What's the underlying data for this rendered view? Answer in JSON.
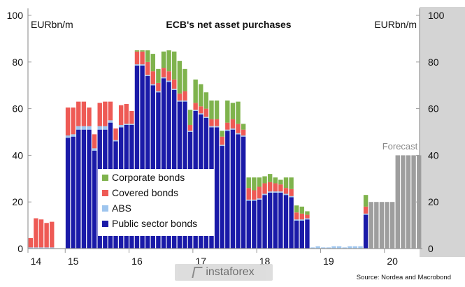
{
  "chart_data": {
    "type": "bar",
    "stacked": true,
    "title": "ECB's net asset purchases",
    "unit_left": "EURbn/m",
    "unit_right": "EURbn/m",
    "source": "Source: Nordea and Macrobond",
    "forecast_label": "Forecast",
    "ylim": [
      0,
      100
    ],
    "yticks": [
      0,
      20,
      40,
      60,
      80,
      100
    ],
    "xtick_labels": [
      {
        "label": "14",
        "month": 1
      },
      {
        "label": "15",
        "month": 8
      },
      {
        "label": "16",
        "month": 20
      },
      {
        "label": "17",
        "month": 32
      },
      {
        "label": "18",
        "month": 44
      },
      {
        "label": "19",
        "month": 56
      },
      {
        "label": "20",
        "month": 68
      }
    ],
    "month_count": 74,
    "colors": {
      "public": "#1a1aa8",
      "abs": "#9ec5ee",
      "covered": "#ee5a55",
      "corporate": "#7fb34d",
      "forecast": "#9e9e9e",
      "axis": "#999999",
      "right_band": "#d4d4d4"
    },
    "series": [
      {
        "name": "Public sector bonds",
        "key": "public",
        "values": [
          0,
          0,
          0,
          0,
          0,
          0,
          0,
          47.5,
          48,
          51,
          51,
          51,
          42,
          51,
          51,
          54,
          46,
          52,
          53,
          53,
          78.5,
          78.5,
          74,
          70,
          67,
          73,
          71.5,
          68,
          63,
          63,
          50,
          59,
          57.5,
          56,
          52,
          52,
          44,
          50.5,
          51,
          49,
          48,
          20.5,
          20.5,
          21,
          23,
          24,
          24,
          24,
          23,
          22,
          12,
          12,
          12.5,
          0,
          0,
          0,
          0,
          0,
          0,
          0,
          0,
          0,
          0,
          14.5,
          0,
          0,
          0,
          0,
          0,
          0,
          0,
          0,
          0,
          0
        ]
      },
      {
        "name": "ABS",
        "key": "abs",
        "values": [
          0.5,
          0.5,
          0.5,
          0.5,
          0.5,
          0,
          0,
          1,
          1,
          1.5,
          1.5,
          1.5,
          1,
          1.5,
          1.5,
          1,
          0.5,
          1,
          0.5,
          0.5,
          0.5,
          0.5,
          0.5,
          0.5,
          0.5,
          0.5,
          0.5,
          0.5,
          0.5,
          0.5,
          0.5,
          0.5,
          0.5,
          0.5,
          0.5,
          0.5,
          0.5,
          0.5,
          0.5,
          0.5,
          0.5,
          0.5,
          0.5,
          0.5,
          0.5,
          0.5,
          0.5,
          0.5,
          0.5,
          0.5,
          0.5,
          0.5,
          0.5,
          0.5,
          1,
          0.5,
          0.5,
          1,
          1,
          0.5,
          1,
          1,
          1,
          0.5,
          0,
          0,
          0,
          0,
          0,
          0,
          0,
          0,
          0,
          0
        ]
      },
      {
        "name": "Covered bonds",
        "key": "covered",
        "values": [
          4,
          12.5,
          12,
          10.5,
          11,
          0,
          0,
          12,
          11.5,
          10.5,
          10.5,
          8,
          6,
          10,
          10.5,
          8,
          5,
          8.5,
          8.5,
          5.5,
          5.5,
          5.5,
          5.5,
          5.5,
          3.5,
          4,
          4,
          4,
          3,
          4,
          2.5,
          3,
          3,
          3.5,
          3,
          3,
          3.5,
          3,
          4,
          4,
          2.5,
          5,
          4,
          5,
          4.5,
          4,
          3.5,
          3,
          2.5,
          3,
          3,
          2.5,
          1.5,
          0,
          0,
          0,
          0,
          0,
          0,
          0,
          0,
          0,
          0,
          3,
          0,
          0,
          0,
          0,
          0,
          0,
          0,
          0,
          0,
          0
        ]
      },
      {
        "name": "Corporate bonds",
        "key": "corporate",
        "values": [
          0,
          0,
          0,
          0,
          0,
          0,
          0,
          0,
          0,
          0,
          0,
          0,
          0,
          0,
          0,
          0,
          0,
          0,
          0,
          0,
          0.5,
          0.5,
          5,
          7.5,
          6,
          7,
          9,
          12,
          14,
          9.5,
          6.5,
          10,
          9.5,
          7,
          8,
          8,
          2.5,
          9.5,
          7,
          9.5,
          2.5,
          4.5,
          5.5,
          4,
          3,
          3.5,
          2.5,
          2,
          4.5,
          5,
          3,
          3,
          1.5,
          0,
          0,
          0,
          0,
          0,
          0,
          0,
          0,
          0,
          0,
          5,
          0,
          0,
          0,
          0,
          0,
          0,
          0,
          0,
          0,
          0
        ]
      },
      {
        "name": "Forecast",
        "key": "forecast",
        "values": [
          0,
          0,
          0,
          0,
          0,
          0,
          0,
          0,
          0,
          0,
          0,
          0,
          0,
          0,
          0,
          0,
          0,
          0,
          0,
          0,
          0,
          0,
          0,
          0,
          0,
          0,
          0,
          0,
          0,
          0,
          0,
          0,
          0,
          0,
          0,
          0,
          0,
          0,
          0,
          0,
          0,
          0,
          0,
          0,
          0,
          0,
          0,
          0,
          0,
          0,
          0,
          0,
          0,
          0,
          0,
          0,
          0,
          0,
          0,
          0,
          0,
          0,
          0,
          0,
          20,
          20,
          20,
          20,
          20,
          40,
          40,
          40,
          40,
          40
        ]
      }
    ],
    "legend": {
      "placement": "lower-left",
      "items": [
        {
          "label": "Corporate bonds",
          "key": "corporate"
        },
        {
          "label": "Covered bonds",
          "key": "covered"
        },
        {
          "label": "ABS",
          "key": "abs"
        },
        {
          "label": "Public sector bonds",
          "key": "public"
        }
      ]
    }
  },
  "watermark": {
    "text": "instaforex"
  }
}
